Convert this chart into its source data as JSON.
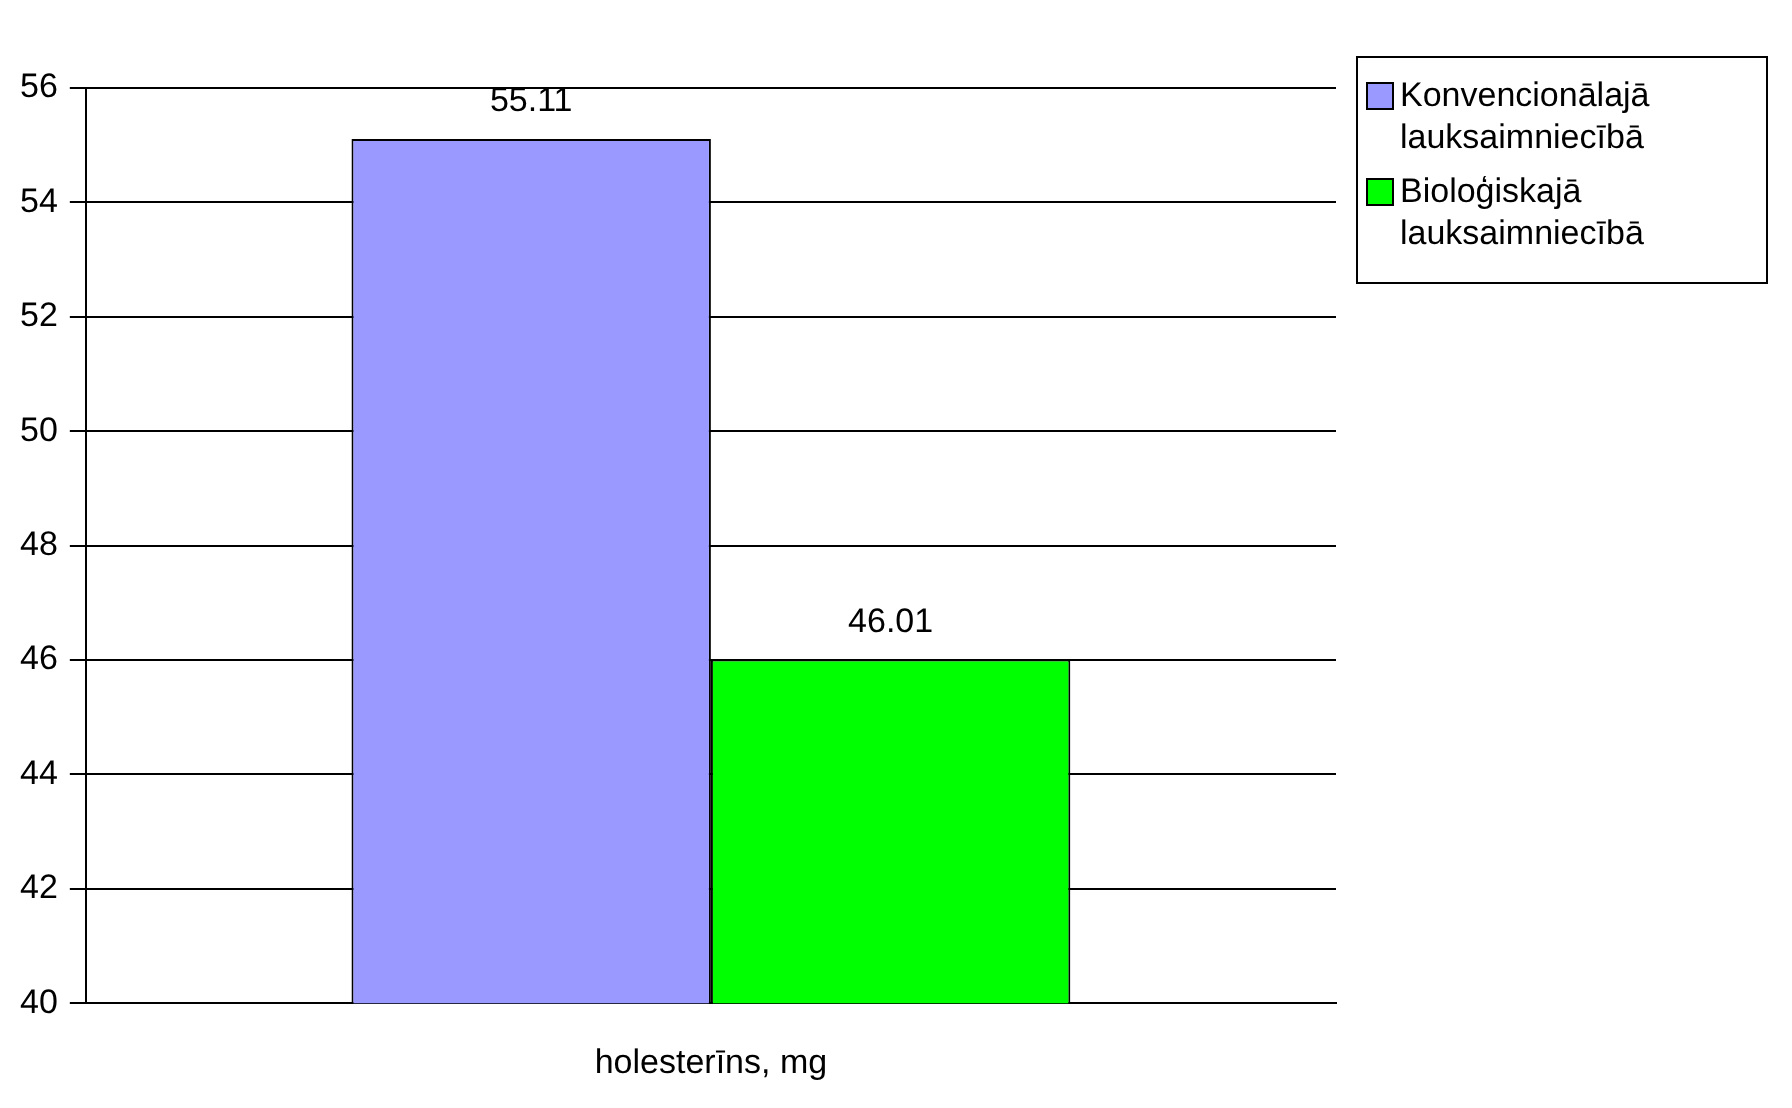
{
  "chart_data": {
    "type": "bar",
    "categories": [
      "holesterīns, mg"
    ],
    "series": [
      {
        "name": "Konvencionālajā lauksaimniecībā",
        "color": "#9999ff",
        "values": [
          55.11
        ]
      },
      {
        "name": "Bioloģiskajā lauksaimniecībā",
        "color": "#00ff00",
        "values": [
          46.01
        ]
      }
    ],
    "ylim": [
      40,
      56
    ],
    "yticks": [
      40,
      42,
      44,
      46,
      48,
      50,
      52,
      54,
      56
    ],
    "grid": "y",
    "legend": "top right",
    "data_labels": true
  }
}
